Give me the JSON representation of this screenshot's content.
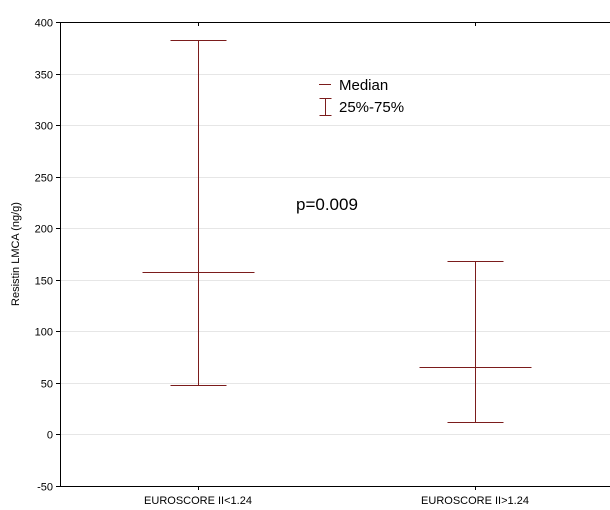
{
  "chart_data": {
    "type": "box",
    "ylabel": "Resistin LMCA (ng/g)",
    "ylim": [
      -50,
      400
    ],
    "yticks": [
      -50,
      0,
      50,
      100,
      150,
      200,
      250,
      300,
      350,
      400
    ],
    "grid": true,
    "categories": [
      "EUROSCORE II<1.24",
      "EUROSCORE II>1.24"
    ],
    "series": [
      {
        "category": "EUROSCORE II<1.24",
        "median": 158,
        "q1": 48,
        "q3": 383
      },
      {
        "category": "EUROSCORE II>1.24",
        "median": 65,
        "q1": 12,
        "q3": 168
      }
    ],
    "legend": {
      "placement": "top-center",
      "entries": [
        {
          "symbol": "median-line",
          "label": "Median"
        },
        {
          "symbol": "range-bar",
          "label": "25%-75%"
        }
      ]
    },
    "annotation": "p=0.009",
    "color": "#7b1c1c"
  }
}
